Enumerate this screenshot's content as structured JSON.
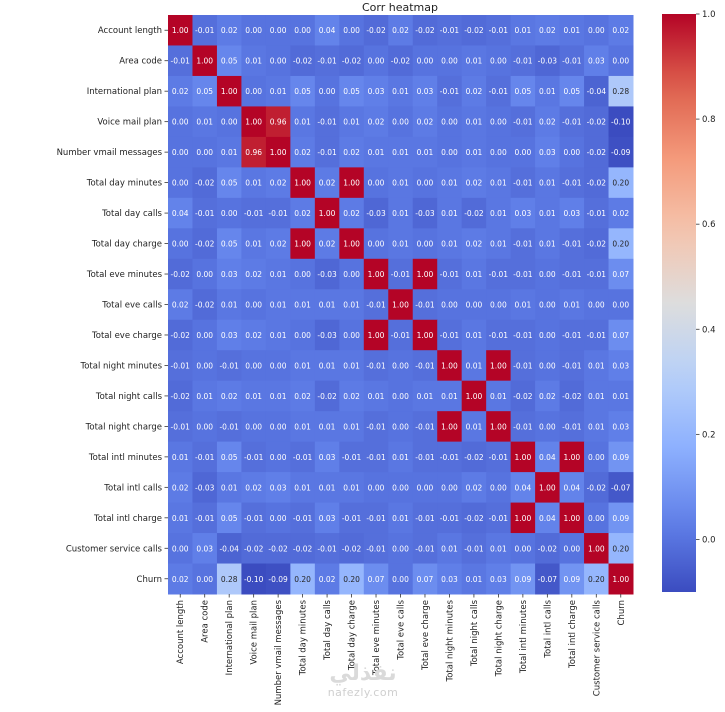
{
  "chart_data": {
    "type": "heatmap",
    "title": "Corr heatmap",
    "xlabel": "",
    "ylabel": "",
    "colormap": "coolwarm",
    "vmin": -0.1,
    "vmax": 1.0,
    "labels": [
      "Account length",
      "Area code",
      "International plan",
      "Voice mail plan",
      "Number vmail messages",
      "Total day minutes",
      "Total day calls",
      "Total day charge",
      "Total eve minutes",
      "Total eve calls",
      "Total eve charge",
      "Total night minutes",
      "Total night calls",
      "Total night charge",
      "Total intl minutes",
      "Total intl calls",
      "Total intl charge",
      "Customer service calls",
      "Churn"
    ],
    "matrix": [
      [
        1.0,
        -0.01,
        0.02,
        0.0,
        -0.0,
        0.0,
        0.04,
        0.0,
        -0.02,
        0.02,
        -0.02,
        -0.01,
        -0.02,
        -0.01,
        0.01,
        0.02,
        0.01,
        0.0,
        0.02
      ],
      [
        -0.01,
        1.0,
        0.05,
        0.01,
        -0.0,
        -0.02,
        -0.01,
        -0.02,
        0.0,
        -0.02,
        0.0,
        -0.0,
        0.01,
        -0.0,
        -0.01,
        -0.03,
        -0.01,
        0.03,
        0.0
      ],
      [
        0.02,
        0.05,
        1.0,
        0.0,
        0.01,
        0.05,
        -0.0,
        0.05,
        0.03,
        0.01,
        0.03,
        -0.01,
        0.02,
        -0.01,
        0.05,
        0.01,
        0.05,
        -0.04,
        0.28
      ],
      [
        0.0,
        0.01,
        0.0,
        1.0,
        0.96,
        0.01,
        -0.01,
        0.01,
        0.02,
        0.0,
        0.02,
        0.0,
        0.01,
        0.0,
        -0.01,
        0.02,
        -0.01,
        -0.02,
        -0.1
      ],
      [
        -0.0,
        -0.0,
        0.01,
        0.96,
        1.0,
        0.02,
        -0.01,
        0.02,
        0.01,
        0.01,
        0.01,
        -0.0,
        0.01,
        -0.0,
        -0.0,
        0.03,
        -0.0,
        -0.02,
        -0.09
      ],
      [
        0.0,
        -0.02,
        0.05,
        0.01,
        0.02,
        1.0,
        0.02,
        1.0,
        0.0,
        0.01,
        0.0,
        0.01,
        0.02,
        0.01,
        -0.01,
        0.01,
        -0.01,
        -0.02,
        0.2
      ],
      [
        0.04,
        -0.01,
        -0.0,
        -0.01,
        -0.01,
        0.02,
        1.0,
        0.02,
        -0.03,
        0.01,
        -0.03,
        0.01,
        -0.02,
        0.01,
        0.03,
        0.01,
        0.03,
        -0.01,
        0.02
      ],
      [
        0.0,
        -0.02,
        0.05,
        0.01,
        0.02,
        1.0,
        0.02,
        1.0,
        0.0,
        0.01,
        0.0,
        0.01,
        0.02,
        0.01,
        -0.01,
        0.01,
        -0.01,
        -0.02,
        0.2
      ],
      [
        -0.02,
        0.0,
        0.03,
        0.02,
        0.01,
        0.0,
        -0.03,
        0.0,
        1.0,
        -0.01,
        1.0,
        -0.01,
        0.01,
        -0.01,
        -0.01,
        0.0,
        -0.01,
        -0.01,
        0.07
      ],
      [
        0.02,
        -0.02,
        0.01,
        0.0,
        0.01,
        0.01,
        0.01,
        0.01,
        -0.01,
        1.0,
        -0.01,
        -0.0,
        0.0,
        -0.0,
        0.01,
        0.0,
        0.01,
        0.0,
        -0.0
      ],
      [
        -0.02,
        0.0,
        0.03,
        0.02,
        0.01,
        0.0,
        -0.03,
        0.0,
        1.0,
        -0.01,
        1.0,
        -0.01,
        0.01,
        -0.01,
        -0.01,
        0.0,
        -0.01,
        -0.01,
        0.07
      ],
      [
        -0.01,
        -0.0,
        -0.01,
        0.0,
        -0.0,
        0.01,
        0.01,
        0.01,
        -0.01,
        -0.0,
        -0.01,
        1.0,
        0.01,
        1.0,
        -0.01,
        -0.0,
        -0.01,
        0.01,
        0.03
      ],
      [
        -0.02,
        0.01,
        0.02,
        0.01,
        0.01,
        0.02,
        -0.02,
        0.02,
        0.01,
        0.0,
        0.01,
        0.01,
        1.0,
        0.01,
        -0.02,
        0.02,
        -0.02,
        0.01,
        0.01
      ],
      [
        -0.01,
        -0.0,
        -0.01,
        0.0,
        -0.0,
        0.01,
        0.01,
        0.01,
        -0.01,
        -0.0,
        -0.01,
        1.0,
        0.01,
        1.0,
        -0.01,
        -0.0,
        -0.01,
        0.01,
        0.03
      ],
      [
        0.01,
        -0.01,
        0.05,
        -0.01,
        -0.0,
        -0.01,
        0.03,
        -0.01,
        -0.01,
        0.01,
        -0.01,
        -0.01,
        -0.02,
        -0.01,
        1.0,
        0.04,
        1.0,
        -0.0,
        0.09
      ],
      [
        0.02,
        -0.03,
        0.01,
        0.02,
        0.03,
        0.01,
        0.01,
        0.01,
        0.0,
        0.0,
        0.0,
        -0.0,
        0.02,
        -0.0,
        0.04,
        1.0,
        0.04,
        -0.02,
        -0.07
      ],
      [
        0.01,
        -0.01,
        0.05,
        -0.01,
        -0.0,
        -0.01,
        0.03,
        -0.01,
        -0.01,
        0.01,
        -0.01,
        -0.01,
        -0.02,
        -0.01,
        1.0,
        0.04,
        1.0,
        -0.0,
        0.09
      ],
      [
        0.0,
        0.03,
        -0.04,
        -0.02,
        -0.02,
        -0.02,
        -0.01,
        -0.02,
        -0.01,
        0.0,
        -0.01,
        0.01,
        -0.01,
        0.01,
        -0.0,
        -0.02,
        -0.0,
        1.0,
        0.2
      ],
      [
        0.02,
        0.0,
        0.28,
        -0.1,
        -0.09,
        0.2,
        0.02,
        0.2,
        0.07,
        -0.0,
        0.07,
        0.03,
        0.01,
        0.03,
        0.09,
        -0.07,
        0.09,
        0.2,
        1.0
      ]
    ],
    "colorbar": {
      "ticks": [
        1.0,
        0.8,
        0.6,
        0.4,
        0.2,
        0.0
      ],
      "tick_labels": [
        "1.0",
        "0.8",
        "0.6",
        "0.4",
        "0.2",
        "0.0"
      ],
      "range": [
        -0.1,
        1.0
      ],
      "placement": "right"
    },
    "annotations": "cell values shown with 2 decimals",
    "grid": false
  },
  "watermark": {
    "arabic": "نفذلي",
    "latin": "nafezly.com"
  }
}
